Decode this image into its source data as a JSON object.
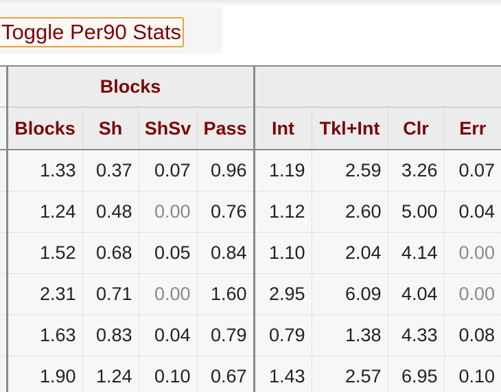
{
  "toggle_button": {
    "label": "Toggle Per90 Stats"
  },
  "group_headers": {
    "blocks": "Blocks",
    "other": ""
  },
  "columns": [
    "Blocks",
    "Sh",
    "ShSv",
    "Pass",
    "Int",
    "Tkl+Int",
    "Clr",
    "Err"
  ],
  "rows": [
    [
      "1.33",
      "0.37",
      "0.07",
      "0.96",
      "1.19",
      "2.59",
      "3.26",
      "0.07"
    ],
    [
      "1.24",
      "0.48",
      "0.00",
      "0.76",
      "1.12",
      "2.60",
      "5.00",
      "0.04"
    ],
    [
      "1.52",
      "0.68",
      "0.05",
      "0.84",
      "1.10",
      "2.04",
      "4.14",
      "0.00"
    ],
    [
      "2.31",
      "0.71",
      "0.00",
      "1.60",
      "2.95",
      "6.09",
      "4.04",
      "0.00"
    ],
    [
      "1.63",
      "0.83",
      "0.04",
      "0.79",
      "0.79",
      "1.38",
      "4.33",
      "0.08"
    ],
    [
      "1.90",
      "1.24",
      "0.10",
      "0.67",
      "1.43",
      "2.57",
      "6.95",
      "0.10"
    ]
  ],
  "colors": {
    "header_text": "#7a0707",
    "button_border": "#e8a33a",
    "zero_value_text": "#8a8a8a",
    "cell_background": "#f7f7f7"
  }
}
